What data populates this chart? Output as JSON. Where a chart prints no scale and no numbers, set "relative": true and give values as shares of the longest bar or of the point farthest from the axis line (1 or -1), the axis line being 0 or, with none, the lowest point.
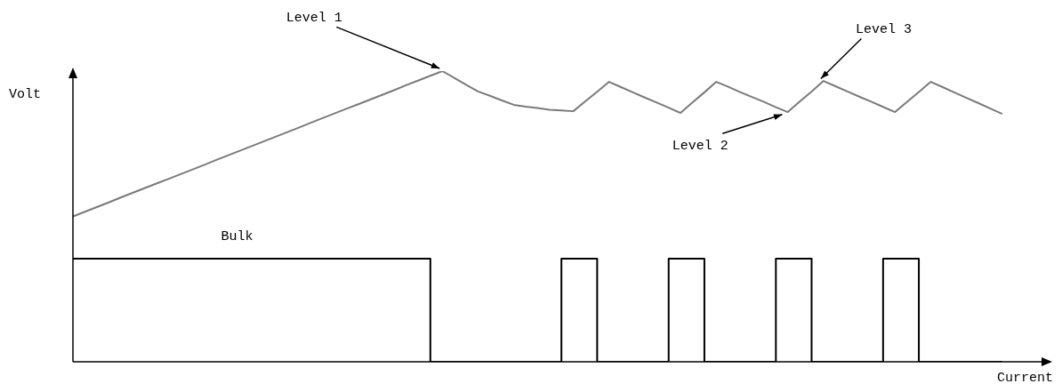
{
  "chart_data": {
    "type": "line",
    "relative": true,
    "xlabel": "Current",
    "ylabel": "Volt",
    "marker": "none",
    "line_style": "solid",
    "categories": [
      null,
      null,
      null,
      null,
      null,
      null,
      null,
      null,
      null,
      null,
      null,
      null,
      null,
      null,
      null,
      null,
      null,
      null,
      null,
      null,
      null,
      null,
      null,
      null,
      null,
      null,
      null,
      null,
      null,
      null,
      null,
      null,
      null,
      null,
      null,
      null,
      null,
      null,
      null,
      null,
      null,
      null,
      null,
      null,
      null,
      null,
      null,
      null,
      null,
      null,
      null,
      null,
      null,
      null,
      null,
      null,
      null,
      null,
      null,
      null,
      null,
      null,
      null,
      null,
      null,
      null,
      null,
      null,
      null,
      null,
      null,
      null,
      null,
      null,
      null,
      null,
      null,
      null,
      null,
      null,
      null,
      null
    ],
    "series": [
      {
        "color": "#7a7a7a",
        "values": [
          0.5,
          0.516,
          0.532,
          0.548,
          0.565,
          0.581,
          0.597,
          0.613,
          0.629,
          0.645,
          0.661,
          0.677,
          0.694,
          0.71,
          0.726,
          0.742,
          0.758,
          0.774,
          0.79,
          0.806,
          0.823,
          0.839,
          0.855,
          0.871,
          0.887,
          0.903,
          0.919,
          0.935,
          0.952,
          0.968,
          0.984,
          1,
          0.977,
          0.953,
          0.93,
          0.915,
          0.899,
          0.884,
          0.878,
          0.873,
          0.867,
          0.865,
          0.862,
          0.896,
          0.929,
          0.963,
          0.945,
          0.927,
          0.909,
          0.892,
          0.874,
          0.856,
          0.892,
          0.927,
          0.963,
          0.946,
          0.928,
          0.911,
          0.894,
          0.876,
          0.859,
          0.895,
          0.93,
          0.966,
          0.948,
          0.93,
          0.912,
          0.895,
          0.877,
          0.859,
          0.894,
          0.928,
          0.963,
          0.945,
          0.926,
          0.908,
          0.89,
          0.871,
          0.853,
          null,
          null,
          null
        ]
      },
      {
        "type": "step",
        "color": "#000000",
        "values": [
          0.355,
          0.355,
          0.355,
          0.355,
          0.355,
          0.355,
          0.355,
          0.355,
          0.355,
          0.355,
          0.355,
          0.355,
          0.355,
          0.355,
          0.355,
          0.355,
          0.355,
          0.355,
          0.355,
          0.355,
          0.355,
          0.355,
          0.355,
          0.355,
          0.355,
          0.355,
          0.355,
          0.355,
          0.355,
          0.355,
          0.355,
          0,
          0,
          0,
          0,
          0,
          0,
          0,
          0,
          0,
          0,
          0,
          0.355,
          0.355,
          0.355,
          0,
          0,
          0,
          0,
          0,
          0,
          0.355,
          0.355,
          0.355,
          0,
          0,
          0,
          0,
          0,
          0,
          0.355,
          0.355,
          0.355,
          0,
          0,
          0,
          0,
          0,
          0,
          0.355,
          0.355,
          0.355,
          0,
          0,
          0,
          0,
          0,
          0,
          0,
          null,
          null,
          null
        ]
      }
    ],
    "annotations": [
      "Level 1",
      "Level 2",
      "Level 3",
      "Bulk"
    ]
  }
}
